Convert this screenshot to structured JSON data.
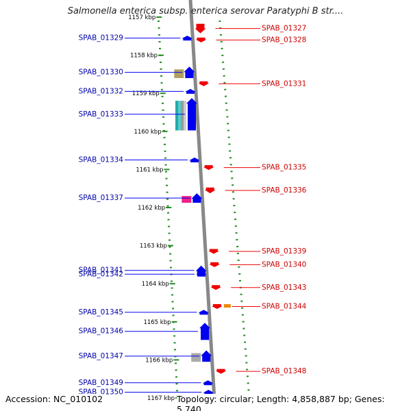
{
  "header": {
    "title": "Salmonella enterica subsp. enterica serovar Paratyphi B str...."
  },
  "footer": {
    "accession": "Accession: NC_010102",
    "summary": "Topology: circular; Length: 4,858,887 bp; Genes: 5,740"
  },
  "colors": {
    "forward_strand": "#0000ee",
    "reverse_strand": "#ee0000",
    "backbone": "#888888",
    "dotted_track": "#228b22",
    "label_forward": "#0000aa",
    "label_reverse": "#cc0000"
  },
  "ticks": [
    {
      "label": "1157 kbp",
      "pos": 1157
    },
    {
      "label": "1158 kbp",
      "pos": 1158
    },
    {
      "label": "1159 kbp",
      "pos": 1159
    },
    {
      "label": "1160 kbp",
      "pos": 1160
    },
    {
      "label": "1161 kbp",
      "pos": 1161
    },
    {
      "label": "1162 kbp",
      "pos": 1162
    },
    {
      "label": "1163 kbp",
      "pos": 1163
    },
    {
      "label": "1164 kbp",
      "pos": 1164
    },
    {
      "label": "1165 kbp",
      "pos": 1165
    },
    {
      "label": "1166 kbp",
      "pos": 1166
    },
    {
      "label": "1167 kbp",
      "pos": 1167
    }
  ],
  "genes": {
    "forward": [
      {
        "id": "SPAB_01329",
        "pos": 1157.55,
        "len": 0.1
      },
      {
        "id": "SPAB_01330",
        "pos": 1158.45,
        "len": 0.3,
        "extra": "#b0a060"
      },
      {
        "id": "SPAB_01332",
        "pos": 1158.95,
        "len": 0.12
      },
      {
        "id": "SPAB_01333",
        "pos": 1159.55,
        "len": 0.85,
        "extra": "stripes"
      },
      {
        "id": "SPAB_01334",
        "pos": 1160.75,
        "len": 0.08
      },
      {
        "id": "SPAB_01337",
        "pos": 1161.75,
        "len": 0.25,
        "extra": "#ee2288"
      },
      {
        "id": "SPAB_01341",
        "pos": 1163.65,
        "len": 0.25
      },
      {
        "id": "SPAB_01342",
        "pos": 1163.75,
        "len": 0.05
      },
      {
        "id": "SPAB_01345",
        "pos": 1164.75,
        "len": 0.08
      },
      {
        "id": "SPAB_01346",
        "pos": 1165.25,
        "len": 0.45
      },
      {
        "id": "SPAB_01347",
        "pos": 1165.9,
        "len": 0.3,
        "extra": "#aaaaaa"
      },
      {
        "id": "SPAB_01349",
        "pos": 1166.6,
        "len": 0.08
      },
      {
        "id": "SPAB_01350",
        "pos": 1166.85,
        "len": 0.08
      }
    ],
    "reverse": [
      {
        "id": "SPAB_01327",
        "pos": 1157.3,
        "len": 0.25
      },
      {
        "id": "SPAB_01328",
        "pos": 1157.6,
        "len": 0.12
      },
      {
        "id": "SPAB_01331",
        "pos": 1158.75,
        "len": 0.08
      },
      {
        "id": "SPAB_01335",
        "pos": 1160.95,
        "len": 0.12
      },
      {
        "id": "SPAB_01336",
        "pos": 1161.55,
        "len": 0.15
      },
      {
        "id": "SPAB_01339",
        "pos": 1163.15,
        "len": 0.08
      },
      {
        "id": "SPAB_01340",
        "pos": 1163.5,
        "len": 0.1
      },
      {
        "id": "SPAB_01343",
        "pos": 1164.1,
        "len": 0.12
      },
      {
        "id": "SPAB_01344",
        "pos": 1164.6,
        "len": 0.12,
        "extra": "#ee8800"
      },
      {
        "id": "SPAB_01348",
        "pos": 1166.3,
        "len": 0.1
      }
    ]
  }
}
